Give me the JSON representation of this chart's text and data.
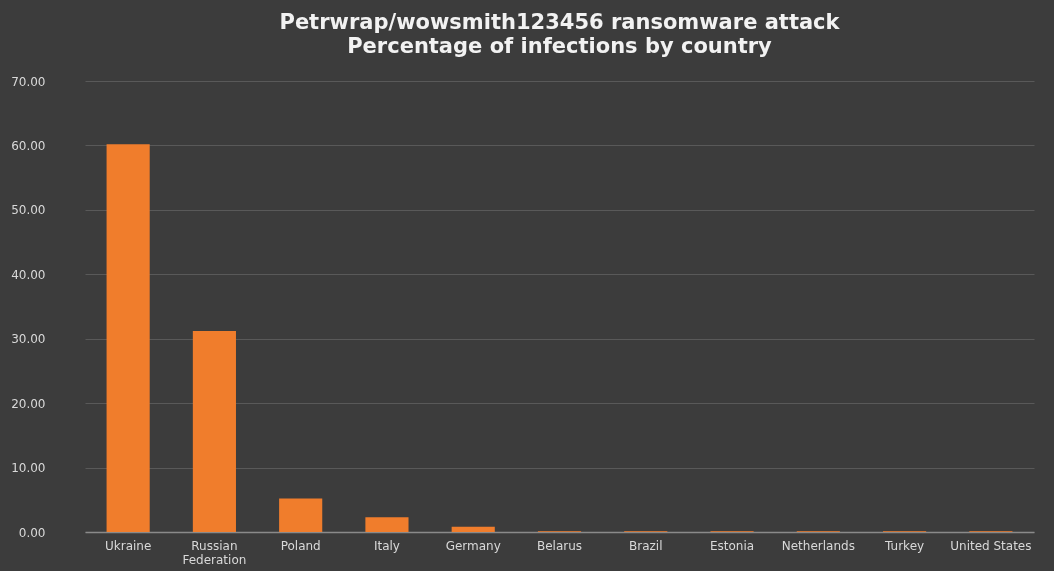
{
  "chart_data": {
    "type": "bar",
    "title": "Petrwrap/wowsmith123456 ransomware attack",
    "subtitle": "Percentage of infections by country",
    "categories": [
      "Ukraine",
      "Russian Federation",
      "Poland",
      "Italy",
      "Germany",
      "Belarus",
      "Brazil",
      "Estonia",
      "Netherlands",
      "Turkey",
      "United States"
    ],
    "values": [
      60.2,
      31.2,
      5.2,
      2.3,
      0.8,
      0.1,
      0.1,
      0.1,
      0.1,
      0.1,
      0.1
    ],
    "color": "#f07d2c",
    "ylim": [
      0,
      70
    ],
    "yticks": [
      {
        "value": 0,
        "label": "0.00"
      },
      {
        "value": 10,
        "label": "10.00"
      },
      {
        "value": 20,
        "label": "20.00"
      },
      {
        "value": 30,
        "label": "30.00"
      },
      {
        "value": 40,
        "label": "40.00"
      },
      {
        "value": 50,
        "label": "50.00"
      },
      {
        "value": 60,
        "label": "60.00"
      },
      {
        "value": 70,
        "label": "70.00"
      }
    ],
    "grid": "y"
  }
}
